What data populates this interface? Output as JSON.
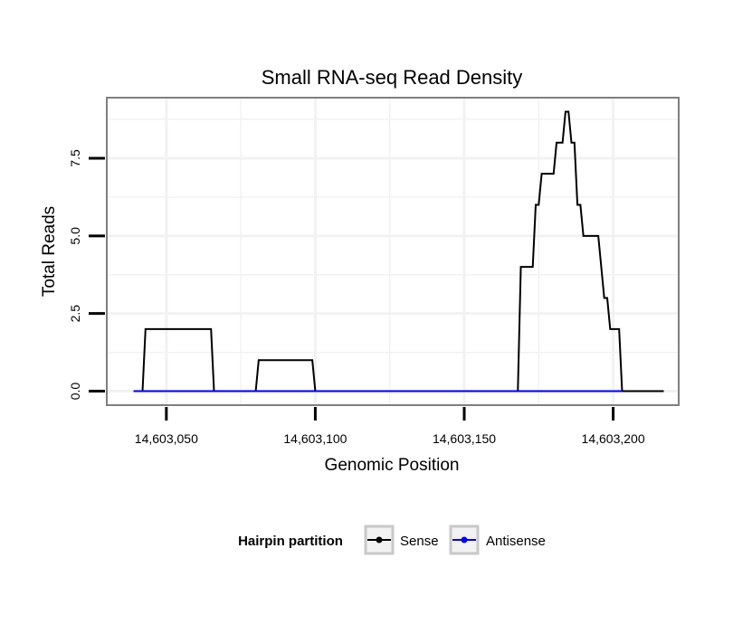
{
  "chart_data": {
    "type": "line",
    "title": "Small RNA-seq Read Density",
    "xlabel": "Genomic Position",
    "ylabel": "Total Reads",
    "xlim": [
      14603030,
      14603222
    ],
    "ylim": [
      -0.45,
      9.45
    ],
    "x_ticks": [
      14603050,
      14603100,
      14603150,
      14603200
    ],
    "x_tick_labels": [
      "14,603,050",
      "14,603,100",
      "14,603,150",
      "14,603,200"
    ],
    "y_ticks": [
      0,
      2.5,
      5,
      7.5
    ],
    "y_tick_labels": [
      "0.0",
      "2.5",
      "5.0",
      "7.5"
    ],
    "grid": true,
    "legend": {
      "title": "Hairpin partition",
      "position": "bottom",
      "entries": [
        {
          "name": "Sense",
          "color": "#000000"
        },
        {
          "name": "Antisense",
          "color": "#0000ff"
        }
      ]
    },
    "series": [
      {
        "name": "Sense",
        "color": "#000000",
        "points": [
          [
            14603039,
            0
          ],
          [
            14603042,
            0
          ],
          [
            14603043,
            2
          ],
          [
            14603065,
            2
          ],
          [
            14603066,
            0
          ],
          [
            14603080,
            0
          ],
          [
            14603081,
            1
          ],
          [
            14603099,
            1
          ],
          [
            14603100,
            0
          ],
          [
            14603168,
            0
          ],
          [
            14603169,
            4
          ],
          [
            14603173,
            4
          ],
          [
            14603174,
            6
          ],
          [
            14603175,
            6
          ],
          [
            14603176,
            7
          ],
          [
            14603180,
            7
          ],
          [
            14603181,
            8
          ],
          [
            14603183,
            8
          ],
          [
            14603184,
            9
          ],
          [
            14603185,
            9
          ],
          [
            14603186,
            8
          ],
          [
            14603187,
            8
          ],
          [
            14603188,
            6
          ],
          [
            14603189,
            6
          ],
          [
            14603190,
            5
          ],
          [
            14603195,
            5
          ],
          [
            14603197,
            3
          ],
          [
            14603198,
            3
          ],
          [
            14603199,
            2
          ],
          [
            14603202,
            2
          ],
          [
            14603203,
            0
          ],
          [
            14603217,
            0
          ]
        ]
      },
      {
        "name": "Antisense",
        "color": "#0000ff",
        "points": [
          [
            14603039,
            0
          ],
          [
            14603066,
            0
          ],
          [
            14603080,
            0
          ],
          [
            14603100,
            0
          ],
          [
            14603168,
            0
          ],
          [
            14603203,
            0
          ]
        ]
      }
    ]
  }
}
